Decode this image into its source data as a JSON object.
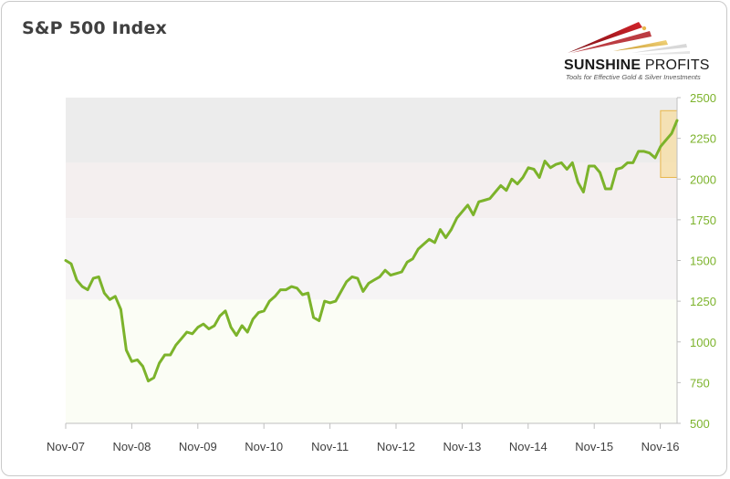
{
  "chart_data": {
    "type": "line",
    "title": "S&P 500 Index",
    "xlabel": "",
    "ylabel": "",
    "ylim": [
      500,
      2500
    ],
    "y_ticks": [
      500,
      750,
      1000,
      1250,
      1500,
      1750,
      2000,
      2250,
      2500
    ],
    "x_tick_labels": [
      "Nov-07",
      "Nov-08",
      "Nov-09",
      "Nov-10",
      "Nov-11",
      "Nov-12",
      "Nov-13",
      "Nov-14",
      "Nov-15",
      "Nov-16"
    ],
    "x_range": [
      "2007-11",
      "2017-02"
    ],
    "grid": false,
    "y_axis_position": "right",
    "colors": {
      "line": "#7cb32b",
      "band_top": "#ececec",
      "band_upper_mid": "#f4efef",
      "band_lower_mid": "#f6f4f5",
      "band_bottom": "#fbfdf5",
      "highlight_fill": "#f6dfa6",
      "highlight_stroke": "#e8b64a"
    },
    "highlight_region": {
      "x": [
        "2016-11",
        "2017-02"
      ],
      "y": [
        2010,
        2420
      ]
    },
    "series": [
      {
        "x": [
          "2007-11",
          "2007-12",
          "2008-01",
          "2008-02",
          "2008-03",
          "2008-04",
          "2008-05",
          "2008-06",
          "2008-07",
          "2008-08",
          "2008-09",
          "2008-10",
          "2008-11",
          "2008-12",
          "2009-01",
          "2009-02",
          "2009-03",
          "2009-04",
          "2009-05",
          "2009-06",
          "2009-07",
          "2009-08",
          "2009-09",
          "2009-10",
          "2009-11",
          "2009-12",
          "2010-01",
          "2010-02",
          "2010-03",
          "2010-04",
          "2010-05",
          "2010-06",
          "2010-07",
          "2010-08",
          "2010-09",
          "2010-10",
          "2010-11",
          "2010-12",
          "2011-01",
          "2011-02",
          "2011-03",
          "2011-04",
          "2011-05",
          "2011-06",
          "2011-07",
          "2011-08",
          "2011-09",
          "2011-10",
          "2011-11",
          "2011-12",
          "2012-01",
          "2012-02",
          "2012-03",
          "2012-04",
          "2012-05",
          "2012-06",
          "2012-07",
          "2012-08",
          "2012-09",
          "2012-10",
          "2012-11",
          "2012-12",
          "2013-01",
          "2013-02",
          "2013-03",
          "2013-04",
          "2013-05",
          "2013-06",
          "2013-07",
          "2013-08",
          "2013-09",
          "2013-10",
          "2013-11",
          "2013-12",
          "2014-01",
          "2014-02",
          "2014-03",
          "2014-04",
          "2014-05",
          "2014-06",
          "2014-07",
          "2014-08",
          "2014-09",
          "2014-10",
          "2014-11",
          "2014-12",
          "2015-01",
          "2015-02",
          "2015-03",
          "2015-04",
          "2015-05",
          "2015-06",
          "2015-07",
          "2015-08",
          "2015-09",
          "2015-10",
          "2015-11",
          "2015-12",
          "2016-01",
          "2016-02",
          "2016-03",
          "2016-04",
          "2016-05",
          "2016-06",
          "2016-07",
          "2016-08",
          "2016-09",
          "2016-10",
          "2016-11",
          "2016-12",
          "2017-01",
          "2017-02"
        ],
        "values": [
          1500,
          1480,
          1380,
          1340,
          1320,
          1390,
          1400,
          1300,
          1260,
          1280,
          1200,
          950,
          880,
          890,
          850,
          760,
          780,
          870,
          920,
          920,
          980,
          1020,
          1060,
          1050,
          1090,
          1110,
          1080,
          1100,
          1160,
          1190,
          1090,
          1040,
          1100,
          1060,
          1140,
          1180,
          1190,
          1250,
          1280,
          1320,
          1320,
          1340,
          1330,
          1290,
          1300,
          1150,
          1130,
          1250,
          1240,
          1250,
          1310,
          1370,
          1400,
          1390,
          1310,
          1360,
          1380,
          1400,
          1440,
          1410,
          1420,
          1430,
          1490,
          1510,
          1570,
          1600,
          1630,
          1610,
          1690,
          1640,
          1690,
          1760,
          1800,
          1840,
          1780,
          1860,
          1870,
          1880,
          1920,
          1960,
          1930,
          2000,
          1970,
          2010,
          2070,
          2060,
          2010,
          2110,
          2070,
          2090,
          2100,
          2060,
          2100,
          1980,
          1920,
          2080,
          2080,
          2040,
          1940,
          1940,
          2060,
          2070,
          2100,
          2100,
          2170,
          2170,
          2160,
          2130,
          2200,
          2240,
          2280,
          2360
        ]
      }
    ]
  },
  "logo": {
    "name_bold": "SUNSHINE",
    "name_rest": " PROFITS",
    "tagline": "Tools for Effective Gold & Silver Investments"
  }
}
